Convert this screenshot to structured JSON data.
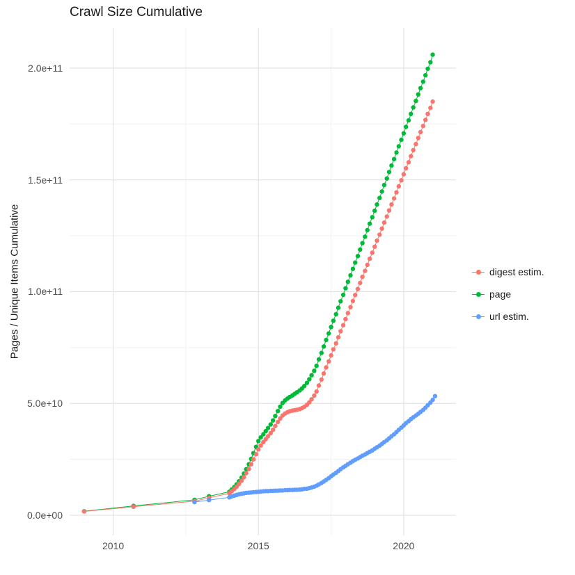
{
  "chart_data": {
    "type": "scatter",
    "title": "Crawl Size Cumulative",
    "xlabel": "",
    "ylabel": "Pages / Unique Items Cumulative",
    "y_unit_note": "y values stored in billions (1e9)",
    "grid": true,
    "legend_position": "right",
    "xlim": [
      2008.5,
      2021.8
    ],
    "ylim_e9": [
      -9,
      218
    ],
    "x_ticks": [
      {
        "value": 2010,
        "label": "2010"
      },
      {
        "value": 2015,
        "label": "2015"
      },
      {
        "value": 2020,
        "label": "2020"
      }
    ],
    "y_ticks": [
      {
        "value_e9": 0,
        "label": "0.0e+00"
      },
      {
        "value_e9": 50,
        "label": "5.0e+10"
      },
      {
        "value_e9": 100,
        "label": "1.0e+11"
      },
      {
        "value_e9": 150,
        "label": "1.5e+11"
      },
      {
        "value_e9": 200,
        "label": "2.0e+11"
      }
    ],
    "x_minor_ticks": [
      2012.5,
      2017.5
    ],
    "y_minor_ticks_e9": [
      25,
      75,
      125,
      175
    ],
    "colors": {
      "digest_estim": "#F8766D",
      "page": "#00BA38",
      "url_estim": "#619CFF",
      "grid_major": "#e3e3e3",
      "grid_minor": "#f1f1f1",
      "tick_label": "#4d4d4d",
      "title_text": "#1a1a1a"
    },
    "series": [
      {
        "name": "digest estim.",
        "color": "#F8766D",
        "points": [
          [
            2009.0,
            1.7
          ],
          [
            2010.7,
            3.8
          ],
          [
            2012.8,
            6.3
          ],
          [
            2013.3,
            7.8
          ],
          [
            2014.0,
            9.8
          ],
          [
            2014.08,
            10.7
          ],
          [
            2014.17,
            11.7
          ],
          [
            2014.25,
            12.8
          ],
          [
            2014.33,
            14.0
          ],
          [
            2014.42,
            15.4
          ],
          [
            2014.5,
            17.0
          ],
          [
            2014.58,
            18.8
          ],
          [
            2014.67,
            20.7
          ],
          [
            2014.75,
            22.8
          ],
          [
            2014.83,
            25.0
          ],
          [
            2014.92,
            27.3
          ],
          [
            2015.0,
            29.5
          ],
          [
            2015.08,
            31.2
          ],
          [
            2015.17,
            32.7
          ],
          [
            2015.25,
            34.0
          ],
          [
            2015.33,
            35.3
          ],
          [
            2015.42,
            36.7
          ],
          [
            2015.5,
            38.2
          ],
          [
            2015.58,
            39.9
          ],
          [
            2015.67,
            41.7
          ],
          [
            2015.75,
            43.3
          ],
          [
            2015.83,
            44.6
          ],
          [
            2015.92,
            45.5
          ],
          [
            2016.0,
            46.1
          ],
          [
            2016.08,
            46.5
          ],
          [
            2016.17,
            46.8
          ],
          [
            2016.25,
            47.0
          ],
          [
            2016.33,
            47.2
          ],
          [
            2016.42,
            47.5
          ],
          [
            2016.5,
            47.9
          ],
          [
            2016.58,
            48.5
          ],
          [
            2016.67,
            49.4
          ],
          [
            2016.75,
            50.5
          ],
          [
            2016.83,
            51.9
          ],
          [
            2016.92,
            53.5
          ],
          [
            2017.0,
            55.3
          ],
          [
            2017.08,
            58.0
          ],
          [
            2017.17,
            60.7
          ],
          [
            2017.25,
            63.4
          ],
          [
            2017.33,
            66.1
          ],
          [
            2017.42,
            68.8
          ],
          [
            2017.5,
            71.5
          ],
          [
            2017.58,
            74.2
          ],
          [
            2017.67,
            76.9
          ],
          [
            2017.75,
            79.6
          ],
          [
            2017.83,
            82.3
          ],
          [
            2017.92,
            85.0
          ],
          [
            2018.0,
            87.7
          ],
          [
            2018.08,
            90.4
          ],
          [
            2018.17,
            93.1
          ],
          [
            2018.25,
            95.8
          ],
          [
            2018.33,
            98.5
          ],
          [
            2018.42,
            101.2
          ],
          [
            2018.5,
            103.9
          ],
          [
            2018.58,
            106.6
          ],
          [
            2018.67,
            109.3
          ],
          [
            2018.75,
            112.0
          ],
          [
            2018.83,
            114.7
          ],
          [
            2018.92,
            117.4
          ],
          [
            2019.0,
            120.1
          ],
          [
            2019.08,
            122.8
          ],
          [
            2019.17,
            125.5
          ],
          [
            2019.25,
            128.2
          ],
          [
            2019.33,
            130.9
          ],
          [
            2019.42,
            133.6
          ],
          [
            2019.5,
            136.3
          ],
          [
            2019.58,
            139.0
          ],
          [
            2019.67,
            141.7
          ],
          [
            2019.75,
            144.4
          ],
          [
            2019.83,
            147.1
          ],
          [
            2019.92,
            149.8
          ],
          [
            2020.0,
            152.5
          ],
          [
            2020.08,
            155.2
          ],
          [
            2020.17,
            157.9
          ],
          [
            2020.25,
            160.6
          ],
          [
            2020.33,
            163.3
          ],
          [
            2020.42,
            166.0
          ],
          [
            2020.5,
            168.7
          ],
          [
            2020.58,
            171.4
          ],
          [
            2020.67,
            174.1
          ],
          [
            2020.75,
            176.8
          ],
          [
            2020.83,
            179.5
          ],
          [
            2020.92,
            182.2
          ],
          [
            2021.0,
            185.0
          ]
        ]
      },
      {
        "name": "page",
        "color": "#00BA38",
        "points": [
          [
            2009.0,
            1.8
          ],
          [
            2010.7,
            4.2
          ],
          [
            2012.8,
            6.9
          ],
          [
            2013.3,
            8.5
          ],
          [
            2014.0,
            10.5
          ],
          [
            2014.08,
            11.5
          ],
          [
            2014.17,
            12.6
          ],
          [
            2014.25,
            13.8
          ],
          [
            2014.33,
            15.2
          ],
          [
            2014.42,
            16.8
          ],
          [
            2014.5,
            18.6
          ],
          [
            2014.58,
            20.6
          ],
          [
            2014.67,
            22.8
          ],
          [
            2014.75,
            25.2
          ],
          [
            2014.83,
            27.8
          ],
          [
            2014.92,
            30.6
          ],
          [
            2015.0,
            33.2
          ],
          [
            2015.08,
            34.8
          ],
          [
            2015.17,
            36.2
          ],
          [
            2015.25,
            37.6
          ],
          [
            2015.33,
            39.0
          ],
          [
            2015.42,
            40.6
          ],
          [
            2015.5,
            42.4
          ],
          [
            2015.58,
            44.4
          ],
          [
            2015.67,
            46.6
          ],
          [
            2015.75,
            48.6
          ],
          [
            2015.83,
            50.2
          ],
          [
            2015.92,
            51.4
          ],
          [
            2016.0,
            52.2
          ],
          [
            2016.08,
            52.9
          ],
          [
            2016.17,
            53.6
          ],
          [
            2016.25,
            54.3
          ],
          [
            2016.33,
            55.0
          ],
          [
            2016.42,
            55.8
          ],
          [
            2016.5,
            56.7
          ],
          [
            2016.58,
            57.8
          ],
          [
            2016.67,
            59.2
          ],
          [
            2016.75,
            60.8
          ],
          [
            2016.83,
            62.6
          ],
          [
            2016.92,
            64.6
          ],
          [
            2017.0,
            66.8
          ],
          [
            2017.08,
            69.7
          ],
          [
            2017.17,
            72.6
          ],
          [
            2017.25,
            75.5
          ],
          [
            2017.33,
            78.4
          ],
          [
            2017.42,
            81.3
          ],
          [
            2017.5,
            84.2
          ],
          [
            2017.58,
            87.0
          ],
          [
            2017.67,
            89.9
          ],
          [
            2017.75,
            92.8
          ],
          [
            2017.83,
            95.7
          ],
          [
            2017.92,
            98.6
          ],
          [
            2018.0,
            101.5
          ],
          [
            2018.08,
            104.4
          ],
          [
            2018.17,
            107.3
          ],
          [
            2018.25,
            110.2
          ],
          [
            2018.33,
            113.0
          ],
          [
            2018.42,
            115.9
          ],
          [
            2018.5,
            118.8
          ],
          [
            2018.58,
            121.7
          ],
          [
            2018.67,
            124.6
          ],
          [
            2018.75,
            127.5
          ],
          [
            2018.83,
            130.4
          ],
          [
            2018.92,
            133.3
          ],
          [
            2019.0,
            136.2
          ],
          [
            2019.08,
            139.0
          ],
          [
            2019.17,
            141.9
          ],
          [
            2019.25,
            144.8
          ],
          [
            2019.33,
            147.7
          ],
          [
            2019.42,
            150.6
          ],
          [
            2019.5,
            153.5
          ],
          [
            2019.58,
            156.4
          ],
          [
            2019.67,
            159.3
          ],
          [
            2019.75,
            162.2
          ],
          [
            2019.83,
            165.0
          ],
          [
            2019.92,
            167.9
          ],
          [
            2020.0,
            170.8
          ],
          [
            2020.08,
            173.7
          ],
          [
            2020.17,
            176.6
          ],
          [
            2020.25,
            179.5
          ],
          [
            2020.33,
            182.4
          ],
          [
            2020.42,
            185.3
          ],
          [
            2020.5,
            188.2
          ],
          [
            2020.58,
            191.0
          ],
          [
            2020.67,
            193.9
          ],
          [
            2020.75,
            196.8
          ],
          [
            2020.83,
            199.7
          ],
          [
            2020.92,
            202.6
          ],
          [
            2021.0,
            206.0
          ]
        ]
      },
      {
        "name": "url estim.",
        "color": "#619CFF",
        "points": [
          [
            2012.8,
            5.9
          ],
          [
            2013.3,
            6.8
          ],
          [
            2014.0,
            8.0
          ],
          [
            2014.08,
            8.4
          ],
          [
            2014.17,
            8.8
          ],
          [
            2014.25,
            9.1
          ],
          [
            2014.33,
            9.4
          ],
          [
            2014.42,
            9.6
          ],
          [
            2014.5,
            9.8
          ],
          [
            2014.58,
            10.0
          ],
          [
            2014.67,
            10.1
          ],
          [
            2014.75,
            10.2
          ],
          [
            2014.83,
            10.3
          ],
          [
            2014.92,
            10.4
          ],
          [
            2015.0,
            10.5
          ],
          [
            2015.08,
            10.6
          ],
          [
            2015.17,
            10.7
          ],
          [
            2015.25,
            10.8
          ],
          [
            2015.33,
            10.8
          ],
          [
            2015.42,
            10.9
          ],
          [
            2015.5,
            10.9
          ],
          [
            2015.58,
            11.0
          ],
          [
            2015.67,
            11.0
          ],
          [
            2015.75,
            11.1
          ],
          [
            2015.83,
            11.1
          ],
          [
            2015.92,
            11.2
          ],
          [
            2016.0,
            11.2
          ],
          [
            2016.08,
            11.3
          ],
          [
            2016.17,
            11.3
          ],
          [
            2016.25,
            11.4
          ],
          [
            2016.33,
            11.4
          ],
          [
            2016.42,
            11.5
          ],
          [
            2016.5,
            11.6
          ],
          [
            2016.58,
            11.8
          ],
          [
            2016.67,
            11.9
          ],
          [
            2016.75,
            12.1
          ],
          [
            2016.83,
            12.4
          ],
          [
            2016.92,
            12.8
          ],
          [
            2017.0,
            13.2
          ],
          [
            2017.08,
            13.8
          ],
          [
            2017.17,
            14.4
          ],
          [
            2017.25,
            15.1
          ],
          [
            2017.33,
            15.8
          ],
          [
            2017.42,
            16.6
          ],
          [
            2017.5,
            17.4
          ],
          [
            2017.58,
            18.2
          ],
          [
            2017.67,
            19.0
          ],
          [
            2017.75,
            19.8
          ],
          [
            2017.83,
            20.6
          ],
          [
            2017.92,
            21.4
          ],
          [
            2018.0,
            22.1
          ],
          [
            2018.08,
            22.8
          ],
          [
            2018.17,
            23.5
          ],
          [
            2018.25,
            24.2
          ],
          [
            2018.33,
            24.8
          ],
          [
            2018.42,
            25.4
          ],
          [
            2018.5,
            26.0
          ],
          [
            2018.58,
            26.6
          ],
          [
            2018.67,
            27.2
          ],
          [
            2018.75,
            27.8
          ],
          [
            2018.83,
            28.4
          ],
          [
            2018.92,
            29.0
          ],
          [
            2019.0,
            29.7
          ],
          [
            2019.08,
            30.4
          ],
          [
            2019.17,
            31.1
          ],
          [
            2019.25,
            31.9
          ],
          [
            2019.33,
            32.7
          ],
          [
            2019.42,
            33.5
          ],
          [
            2019.5,
            34.4
          ],
          [
            2019.58,
            35.3
          ],
          [
            2019.67,
            36.2
          ],
          [
            2019.75,
            37.2
          ],
          [
            2019.83,
            38.2
          ],
          [
            2019.92,
            39.2
          ],
          [
            2020.0,
            40.2
          ],
          [
            2020.08,
            41.2
          ],
          [
            2020.17,
            42.1
          ],
          [
            2020.25,
            43.0
          ],
          [
            2020.33,
            43.8
          ],
          [
            2020.42,
            44.6
          ],
          [
            2020.5,
            45.4
          ],
          [
            2020.58,
            46.2
          ],
          [
            2020.67,
            47.1
          ],
          [
            2020.75,
            48.1
          ],
          [
            2020.83,
            49.2
          ],
          [
            2020.92,
            50.4
          ],
          [
            2021.0,
            51.6
          ],
          [
            2021.08,
            53.3
          ]
        ]
      }
    ]
  }
}
